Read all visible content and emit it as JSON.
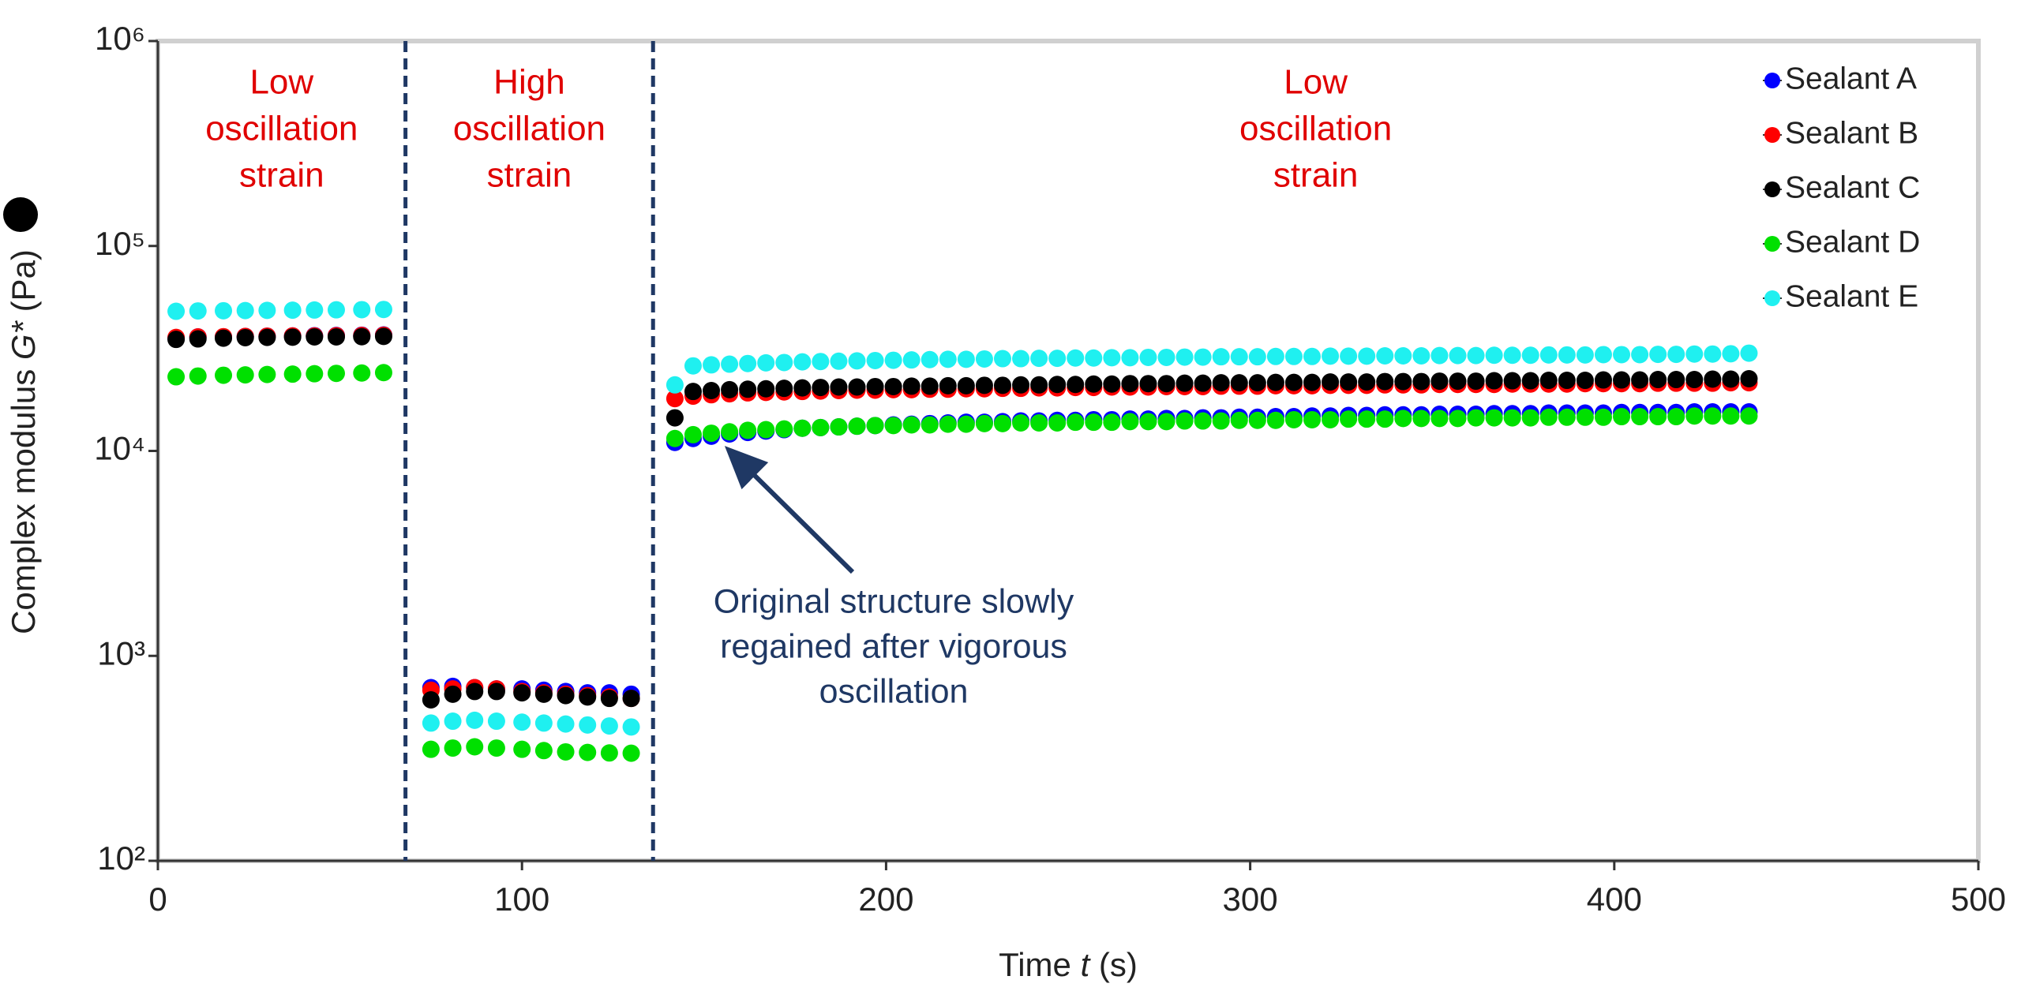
{
  "chart_data": {
    "type": "scatter",
    "xlabel": [
      "Time ",
      "t",
      " (s)"
    ],
    "ylabel": [
      "Complex modulus ",
      "G*",
      " (Pa)"
    ],
    "yscale": "log",
    "xlim": [
      0,
      500
    ],
    "xticks": [
      0,
      100,
      200,
      300,
      400,
      500
    ],
    "ylim": [
      100,
      1000000
    ],
    "yticks": [
      {
        "value": 100,
        "label": "10²"
      },
      {
        "value": 1000,
        "label": "10³"
      },
      {
        "value": 10000,
        "label": "10⁴"
      },
      {
        "value": 100000,
        "label": "10⁵"
      },
      {
        "value": 1000000,
        "label": "10⁶"
      }
    ],
    "legend": "upper right",
    "vlines": [
      68,
      136
    ],
    "regions": [
      {
        "lines": [
          "Low",
          "oscillation",
          "strain"
        ]
      },
      {
        "lines": [
          "High",
          "oscillation",
          "strain"
        ]
      },
      {
        "lines": [
          "Low",
          "oscillation",
          "strain"
        ]
      }
    ],
    "annotation": {
      "lines": [
        "Original structure slowly",
        "regained after vigorous",
        "oscillation"
      ]
    },
    "x": [
      5,
      11,
      18,
      24,
      30,
      37,
      43,
      49,
      56,
      62,
      75,
      81,
      87,
      93,
      100,
      106,
      112,
      118,
      124,
      130,
      142,
      147,
      152,
      157,
      162,
      167,
      172,
      177,
      182,
      187,
      192,
      197,
      202,
      207,
      212,
      217,
      222,
      227,
      232,
      237,
      242,
      247,
      252,
      257,
      262,
      267,
      272,
      277,
      282,
      287,
      292,
      297,
      302,
      307,
      312,
      317,
      322,
      327,
      332,
      337,
      342,
      347,
      352,
      357,
      362,
      367,
      372,
      377,
      382,
      387,
      392,
      397,
      402,
      407,
      412,
      417,
      422,
      427,
      432,
      437
    ],
    "series": [
      {
        "name": "Sealant A",
        "color": "#0000ff",
        "values": [
          35500,
          36000,
          36000,
          36200,
          36300,
          36400,
          36500,
          36600,
          36700,
          36800,
          700,
          710,
          700,
          690,
          690,
          680,
          670,
          660,
          660,
          650,
          11000,
          11500,
          11800,
          12100,
          12300,
          12500,
          12700,
          12900,
          13000,
          13100,
          13200,
          13300,
          13400,
          13500,
          13600,
          13700,
          13800,
          13800,
          13900,
          14000,
          14000,
          14100,
          14100,
          14200,
          14200,
          14300,
          14300,
          14400,
          14400,
          14500,
          14500,
          14600,
          14600,
          14700,
          14700,
          14800,
          14800,
          14900,
          14900,
          15000,
          15000,
          15000,
          15100,
          15100,
          15100,
          15200,
          15200,
          15200,
          15300,
          15300,
          15300,
          15300,
          15400,
          15400,
          15400,
          15400,
          15500,
          15500,
          15500,
          15500
        ]
      },
      {
        "name": "Sealant B",
        "color": "#ff0000",
        "values": [
          35800,
          36000,
          36100,
          36200,
          36300,
          36400,
          36400,
          36500,
          36600,
          36700,
          680,
          690,
          700,
          690,
          670,
          660,
          650,
          640,
          630,
          620,
          18000,
          18500,
          18800,
          19000,
          19200,
          19300,
          19400,
          19500,
          19600,
          19700,
          19800,
          19800,
          19900,
          19900,
          20000,
          20000,
          20100,
          20100,
          20200,
          20200,
          20300,
          20300,
          20400,
          20400,
          20500,
          20500,
          20500,
          20600,
          20600,
          20600,
          20700,
          20700,
          20700,
          20800,
          20800,
          20800,
          20900,
          20900,
          20900,
          21000,
          21000,
          21000,
          21100,
          21100,
          21100,
          21100,
          21200,
          21200,
          21200,
          21200,
          21300,
          21300,
          21300,
          21300,
          21400,
          21400,
          21400,
          21400,
          21500,
          21500
        ]
      },
      {
        "name": "Sealant C",
        "color": "#000000",
        "values": [
          35000,
          35200,
          35500,
          35700,
          35800,
          35900,
          36000,
          36000,
          36100,
          36200,
          610,
          650,
          670,
          670,
          660,
          650,
          640,
          630,
          620,
          620,
          14500,
          19500,
          19700,
          19900,
          20000,
          20100,
          20200,
          20300,
          20400,
          20500,
          20500,
          20600,
          20600,
          20700,
          20700,
          20800,
          20800,
          20900,
          20900,
          21000,
          21000,
          21100,
          21100,
          21200,
          21200,
          21300,
          21300,
          21300,
          21400,
          21400,
          21500,
          21500,
          21500,
          21600,
          21600,
          21600,
          21700,
          21700,
          21700,
          21800,
          21800,
          21800,
          21900,
          21900,
          21900,
          22000,
          22000,
          22000,
          22100,
          22100,
          22100,
          22200,
          22200,
          22200,
          22300,
          22300,
          22300,
          22400,
          22400,
          22500
        ]
      },
      {
        "name": "Sealant D",
        "color": "#00e000",
        "values": [
          23000,
          23200,
          23400,
          23500,
          23600,
          23700,
          23800,
          23900,
          24000,
          24100,
          350,
          355,
          360,
          355,
          350,
          345,
          340,
          338,
          336,
          335,
          11500,
          12000,
          12200,
          12400,
          12600,
          12700,
          12800,
          12900,
          13000,
          13100,
          13200,
          13300,
          13300,
          13400,
          13400,
          13500,
          13500,
          13600,
          13600,
          13700,
          13700,
          13700,
          13800,
          13800,
          13800,
          13900,
          13900,
          13900,
          14000,
          14000,
          14000,
          14100,
          14100,
          14100,
          14200,
          14200,
          14200,
          14300,
          14300,
          14300,
          14400,
          14400,
          14400,
          14400,
          14500,
          14500,
          14500,
          14500,
          14600,
          14600,
          14600,
          14600,
          14700,
          14700,
          14700,
          14700,
          14800,
          14800,
          14800,
          14800
        ]
      },
      {
        "name": "Sealant E",
        "color": "#1ff0f0",
        "values": [
          48000,
          48200,
          48300,
          48400,
          48500,
          48600,
          48700,
          48800,
          48900,
          49000,
          470,
          480,
          485,
          480,
          475,
          470,
          465,
          460,
          455,
          450,
          21000,
          26000,
          26300,
          26500,
          26700,
          26900,
          27000,
          27200,
          27300,
          27400,
          27500,
          27600,
          27700,
          27800,
          27900,
          28000,
          28000,
          28100,
          28200,
          28200,
          28300,
          28300,
          28400,
          28400,
          28500,
          28500,
          28600,
          28600,
          28700,
          28700,
          28800,
          28800,
          28800,
          28900,
          28900,
          28900,
          29000,
          29000,
          29000,
          29100,
          29100,
          29100,
          29200,
          29200,
          29200,
          29300,
          29300,
          29300,
          29400,
          29400,
          29400,
          29500,
          29500,
          29500,
          29600,
          29600,
          29700,
          29700,
          29800,
          30000
        ]
      }
    ]
  }
}
